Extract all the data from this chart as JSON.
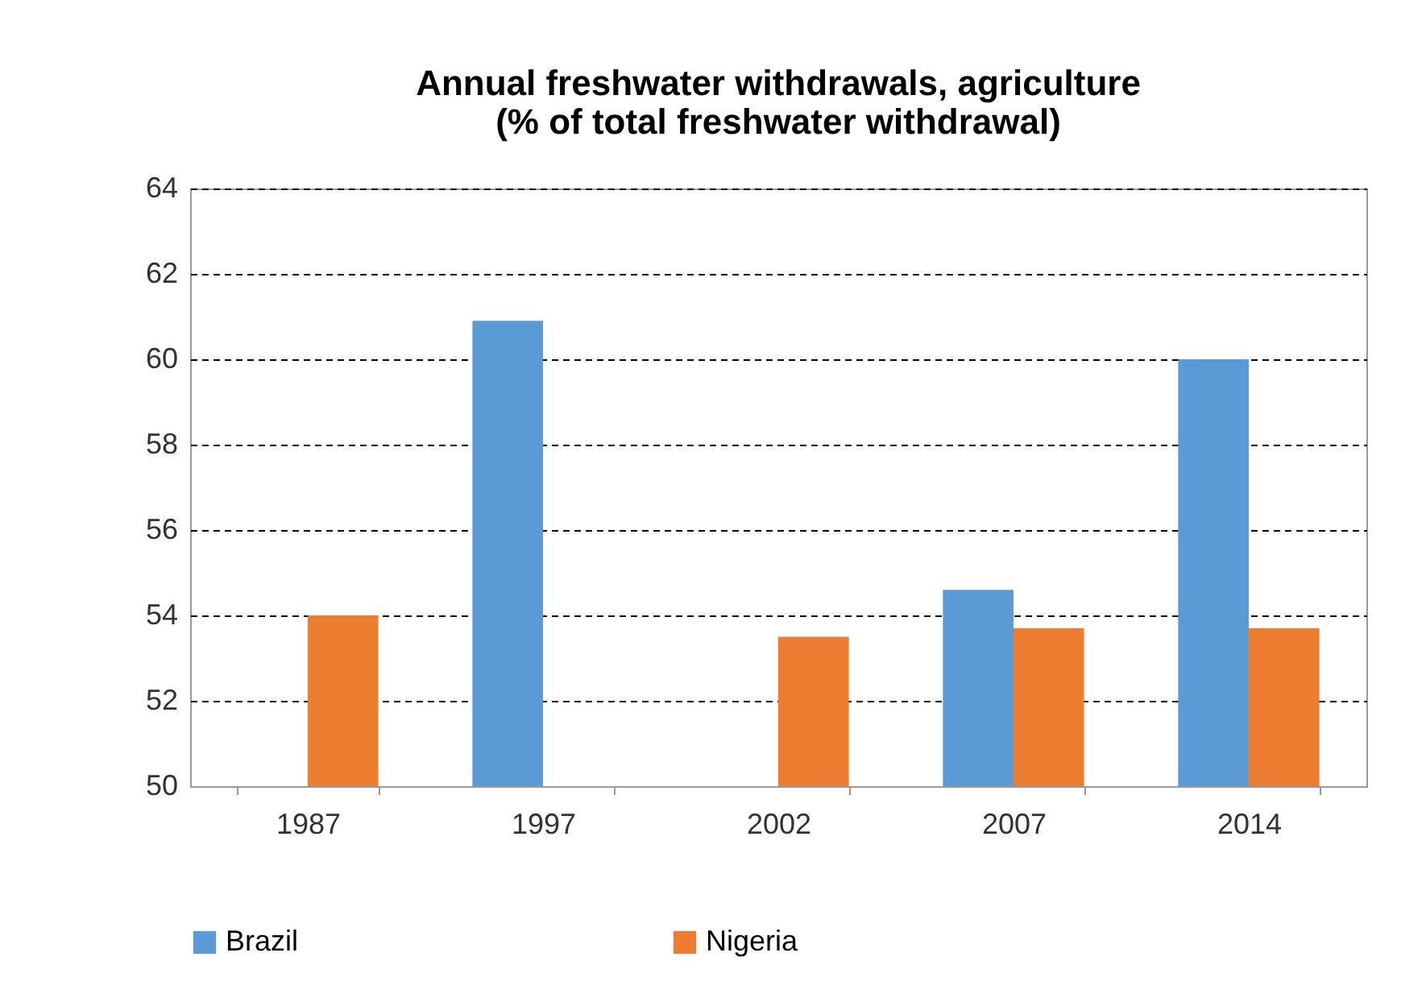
{
  "chart_data": {
    "type": "bar",
    "title": "Annual freshwater withdrawals, agriculture\n(% of total freshwater withdrawal)",
    "categories": [
      "1987",
      "1997",
      "2002",
      "2007",
      "2014"
    ],
    "series": [
      {
        "name": "Brazil",
        "color": "#5b9bd5",
        "values": [
          null,
          60.9,
          null,
          54.6,
          60.0
        ]
      },
      {
        "name": "Nigeria",
        "color": "#ed7d31",
        "values": [
          54.0,
          null,
          53.5,
          53.7,
          53.7
        ]
      }
    ],
    "ylim": [
      50,
      64
    ],
    "yticks": [
      50,
      52,
      54,
      56,
      58,
      60,
      62,
      64
    ],
    "grid": "y",
    "legend": "bottom"
  }
}
